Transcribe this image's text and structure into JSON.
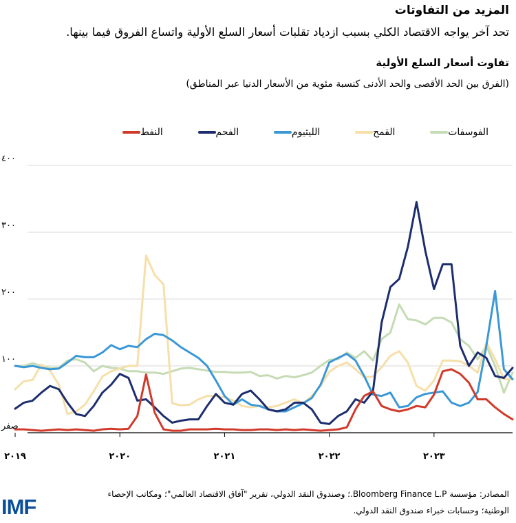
{
  "header": {
    "title": "المزيد من التفاوتات",
    "subtitle": "تحد آخر يواجه الاقتصاد الكلي بسبب ازدياد تقلبات أسعار السلع الأولية واتساع الفروق فيما بينها."
  },
  "footer": {
    "source": "المصادر: مؤسسة Bloomberg Finance L.P.؛ وصندوق النقد الدولي، تقرير \"آفاق الاقتصاد العالمي\"؛ ومكاتب الإحصاء الوطنية؛ وحسابات خبراء صندوق النقد الدولي.",
    "logo_text": "IMF"
  },
  "chart_data": {
    "type": "line",
    "title": "تفاوت أسعار السلع الأولية",
    "subtitle": "(الفرق بين الحد الأقصى والحد الأدنى كنسبة مئوية من الأسعار الدنيا عبر المناطق)",
    "ylim": [
      0,
      400
    ],
    "y_ticks": [
      {
        "value": 0,
        "label": "صفر"
      },
      {
        "value": 100,
        "label": "١٠٠"
      },
      {
        "value": 200,
        "label": "٢٠٠"
      },
      {
        "value": 300,
        "label": "٣٠٠"
      },
      {
        "value": 400,
        "label": "٤٠٠"
      }
    ],
    "xlim": [
      2019.0,
      2023.75
    ],
    "x_ticks": [
      {
        "value": 2019,
        "label": "٢٠١٩"
      },
      {
        "value": 2020,
        "label": "٢٠٢٠"
      },
      {
        "value": 2021,
        "label": "٢٠٢١"
      },
      {
        "value": 2022,
        "label": "٢٠٢٢"
      },
      {
        "value": 2023,
        "label": "٢٠٢٣"
      }
    ],
    "grid": true,
    "legend_position": "top",
    "x": [
      2019.0,
      2019.083,
      2019.167,
      2019.25,
      2019.333,
      2019.417,
      2019.5,
      2019.583,
      2019.667,
      2019.75,
      2019.833,
      2019.917,
      2020.0,
      2020.083,
      2020.167,
      2020.25,
      2020.333,
      2020.417,
      2020.5,
      2020.583,
      2020.667,
      2020.75,
      2020.833,
      2020.917,
      2021.0,
      2021.083,
      2021.167,
      2021.25,
      2021.333,
      2021.417,
      2021.5,
      2021.583,
      2021.667,
      2021.75,
      2021.833,
      2021.917,
      2022.0,
      2022.083,
      2022.167,
      2022.25,
      2022.333,
      2022.417,
      2022.5,
      2022.583,
      2022.667,
      2022.75,
      2022.833,
      2022.917,
      2023.0,
      2023.083,
      2023.167,
      2023.25,
      2023.333,
      2023.417,
      2023.5,
      2023.583,
      2023.667,
      2023.75
    ],
    "series": [
      {
        "name": "الفوسفات",
        "color": "#c5dbb4",
        "values": [
          100,
          100,
          104,
          100,
          97,
          97,
          108,
          110,
          105,
          92,
          100,
          97,
          96,
          92,
          92,
          90,
          90,
          88,
          92,
          96,
          97,
          95,
          93,
          91,
          91,
          90,
          90,
          91,
          85,
          86,
          81,
          85,
          83,
          86,
          90,
          100,
          109,
          110,
          120,
          112,
          122,
          108,
          140,
          150,
          192,
          170,
          168,
          162,
          172,
          172,
          165,
          140,
          130,
          110,
          130,
          100,
          60,
          90
        ]
      },
      {
        "name": "القمح",
        "color": "#f6dfa9",
        "values": [
          65,
          77,
          79,
          102,
          93,
          72,
          28,
          32,
          42,
          62,
          84,
          92,
          96,
          100,
          100,
          265,
          236,
          222,
          44,
          41,
          42,
          50,
          55,
          55,
          53,
          48,
          40,
          38,
          40,
          38,
          40,
          45,
          50,
          44,
          55,
          70,
          91,
          100,
          105,
          95,
          83,
          84,
          98,
          115,
          122,
          105,
          70,
          63,
          78,
          108,
          108,
          107,
          100,
          90,
          135,
          110,
          80,
          80
        ]
      },
      {
        "name": "الليثيوم",
        "color": "#3b98d6",
        "values": [
          100,
          98,
          100,
          97,
          95,
          96,
          105,
          115,
          113,
          113,
          120,
          131,
          125,
          130,
          128,
          140,
          148,
          146,
          138,
          128,
          120,
          112,
          100,
          78,
          55,
          42,
          50,
          42,
          40,
          35,
          32,
          32,
          38,
          44,
          52,
          72,
          105,
          112,
          118,
          108,
          85,
          57,
          55,
          60,
          38,
          40,
          53,
          58,
          60,
          62,
          45,
          40,
          45,
          61,
          130,
          212,
          95,
          80
        ]
      },
      {
        "name": "الفحم",
        "color": "#1d2e6e",
        "values": [
          36,
          45,
          48,
          60,
          70,
          65,
          45,
          28,
          25,
          40,
          60,
          72,
          88,
          82,
          48,
          50,
          38,
          25,
          15,
          18,
          20,
          20,
          40,
          58,
          45,
          42,
          58,
          63,
          50,
          35,
          32,
          35,
          45,
          45,
          35,
          15,
          13,
          25,
          32,
          50,
          45,
          62,
          165,
          218,
          230,
          278,
          345,
          272,
          215,
          252,
          252,
          130,
          100,
          120,
          112,
          85,
          82,
          97
        ]
      },
      {
        "name": "النفط",
        "color": "#d03a2b",
        "values": [
          5,
          5,
          4,
          3,
          4,
          5,
          4,
          5,
          4,
          3,
          5,
          6,
          5,
          6,
          25,
          87,
          30,
          5,
          3,
          3,
          5,
          5,
          5,
          6,
          5,
          5,
          4,
          4,
          5,
          5,
          4,
          5,
          4,
          5,
          4,
          3,
          4,
          5,
          8,
          35,
          55,
          62,
          40,
          35,
          32,
          35,
          40,
          38,
          57,
          92,
          95,
          88,
          75,
          50,
          50,
          38,
          28,
          20
        ]
      }
    ]
  }
}
